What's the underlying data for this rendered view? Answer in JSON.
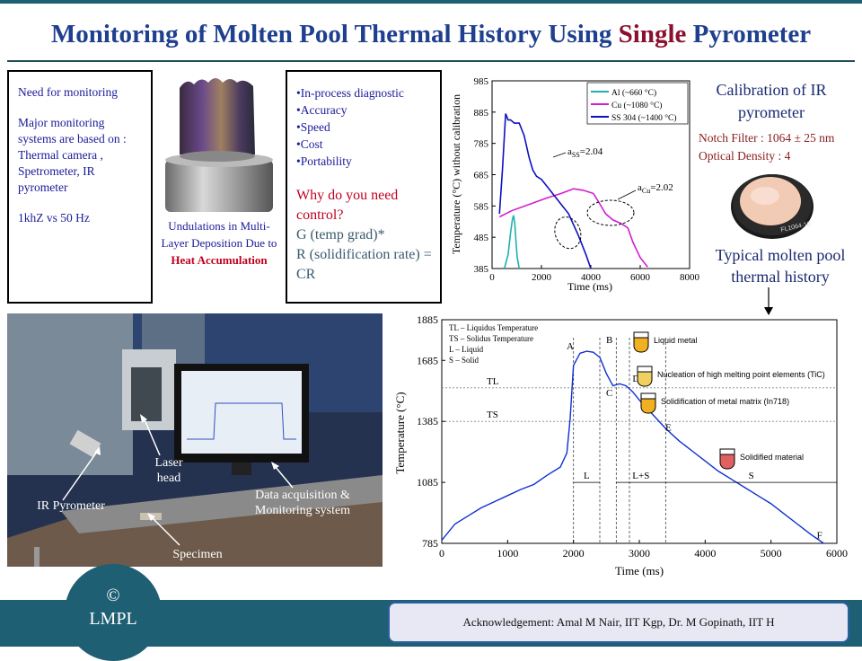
{
  "title": {
    "pre": "Monitoring of Molten Pool Thermal History Using ",
    "highlight": "Single",
    "post": " Pyrometer"
  },
  "need_box": {
    "heading": "Need for monitoring",
    "systems": "Major monitoring systems are based on : Thermal camera , Spetrometer, IR pyrometer",
    "rate": "1khZ vs 50 Hz"
  },
  "sample_caption": {
    "text": "Undulations in Multi-Layer Deposition Due to",
    "emph": "Heat Accumulation"
  },
  "benefits_box": {
    "bullets": [
      "•In-process diagnostic",
      "•Accuracy",
      "•Speed",
      "•Cost",
      "•Portability"
    ],
    "question": "Why do you need control?",
    "g": "G (temp grad)*",
    "r": "R (solidification rate) = CR"
  },
  "calibration": {
    "title": "Calibration of IR pyrometer",
    "notch": "Notch Filter : 1064 ± 25 nm",
    "density": "Optical Density : 4",
    "filter_text": "FL1064-10"
  },
  "typical_title": "Typical molten pool thermal history",
  "photo_labels": {
    "laser": "Laser head",
    "pyro": "IR Pyrometer",
    "daq": "Data acquisition & Monitoring system",
    "spec": "Specimen"
  },
  "logo": {
    "symbol": "©",
    "text": "LMPL"
  },
  "acknowledgement": "Acknowledgement: Amal M Nair, IIT Kgp, Dr. M Gopinath, IIT H",
  "chart_data": [
    {
      "type": "line",
      "title": "",
      "xlabel": "Time (ms)",
      "ylabel": "Temperature (°C) without calibration",
      "xlim": [
        0,
        8000
      ],
      "ylim": [
        385,
        985
      ],
      "x_ticks": [
        0,
        2000,
        4000,
        6000,
        8000
      ],
      "y_ticks": [
        385,
        485,
        585,
        685,
        785,
        885,
        985
      ],
      "legend_position": "top-right",
      "series": [
        {
          "name": "Al (~660 °C)",
          "color": "#20b0b0",
          "x": [
            500,
            650,
            750,
            820,
            870,
            920,
            970,
            1020,
            1100
          ],
          "y": [
            385,
            430,
            500,
            540,
            555,
            530,
            470,
            420,
            385
          ]
        },
        {
          "name": "Cu (~1080 °C)",
          "color": "#d020d0",
          "x": [
            300,
            800,
            1500,
            2200,
            2800,
            3300,
            3700,
            3900,
            4100,
            4300,
            4600,
            4900,
            5200,
            5500,
            5700,
            6000,
            6300
          ],
          "y": [
            550,
            570,
            590,
            610,
            625,
            640,
            635,
            630,
            625,
            600,
            560,
            540,
            530,
            515,
            470,
            420,
            390
          ]
        },
        {
          "name": "SS 304 (~1400 °C)",
          "color": "#1010c0",
          "x": [
            300,
            420,
            550,
            650,
            750,
            900,
            1100,
            1300,
            1500,
            1650,
            1800,
            2000,
            2300,
            2700,
            3100,
            3500,
            3800,
            4000
          ],
          "y": [
            560,
            700,
            880,
            860,
            860,
            850,
            850,
            810,
            740,
            700,
            680,
            670,
            640,
            600,
            560,
            490,
            430,
            385
          ]
        }
      ],
      "annotations": [
        {
          "label": "a",
          "sub": "SS",
          "text": "=2.04"
        },
        {
          "label": "a",
          "sub": "Cu",
          "text": "=2.02"
        }
      ]
    },
    {
      "type": "line",
      "title": "",
      "xlabel": "Time (ms)",
      "ylabel": "Temperature (°C)",
      "xlim": [
        0,
        6000
      ],
      "ylim": [
        785,
        1885
      ],
      "x_ticks": [
        0,
        1000,
        2000,
        3000,
        4000,
        5000,
        6000
      ],
      "y_ticks": [
        785,
        1085,
        1385,
        1685,
        1885
      ],
      "legend_lines": [
        "TL – Liquidus Temperature",
        "TS – Solidus Temperature",
        "L – Liquid",
        "S – Solid"
      ],
      "series": [
        {
          "name": "",
          "color": "#1030d0",
          "x": [
            0,
            200,
            400,
            600,
            800,
            1000,
            1200,
            1400,
            1600,
            1800,
            1900,
            1950,
            2000,
            2100,
            2200,
            2300,
            2400,
            2450,
            2500,
            2550,
            2600,
            2700,
            2800,
            2900,
            3000,
            3200,
            3400,
            3600,
            3800,
            4000,
            4200,
            4400,
            4600,
            4800,
            5000,
            5200,
            5400,
            5600,
            5800
          ],
          "y": [
            800,
            880,
            920,
            960,
            990,
            1020,
            1050,
            1075,
            1120,
            1160,
            1230,
            1400,
            1660,
            1720,
            1730,
            1725,
            1700,
            1660,
            1620,
            1590,
            1560,
            1570,
            1560,
            1530,
            1490,
            1420,
            1350,
            1290,
            1240,
            1190,
            1140,
            1100,
            1060,
            1020,
            980,
            930,
            880,
            830,
            785
          ]
        }
      ],
      "guides": {
        "TL_y": 1550,
        "TS_y": 1385,
        "dashed_x": [
          2000,
          2400,
          2650,
          2850,
          3400
        ]
      },
      "points": [
        {
          "label": "A",
          "x": 1950,
          "y": 1740
        },
        {
          "label": "B",
          "x": 2550,
          "y": 1770
        },
        {
          "label": "C",
          "x": 2550,
          "y": 1510
        },
        {
          "label": "D",
          "x": 2950,
          "y": 1580
        },
        {
          "label": "E",
          "x": 3450,
          "y": 1340
        },
        {
          "label": "F",
          "x": 5750,
          "y": 810
        }
      ],
      "level_labels": [
        "TL",
        "TS"
      ],
      "regions": [
        "L",
        "L+S",
        "S"
      ],
      "stages": [
        "Liquid metal",
        "Nucleation of high melting point elements (TiC)",
        "Solidification of metal matrix (In718)",
        "Solidified material"
      ]
    }
  ]
}
